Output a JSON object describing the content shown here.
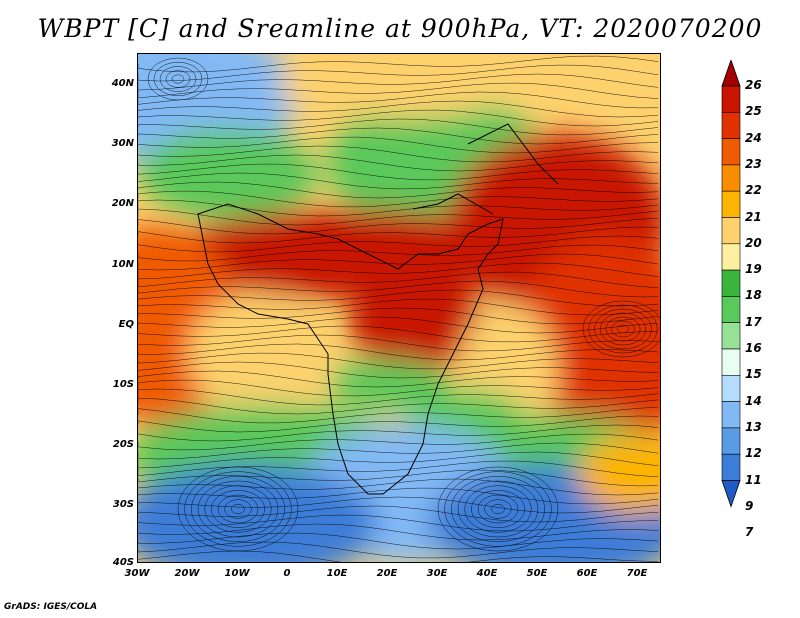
{
  "title": "WBPT [C] and Sreamline at 900hPa, VT: 2020070200",
  "credit": "GrADS: IGES/COLA",
  "axes": {
    "lat_labels": [
      "40N",
      "30N",
      "20N",
      "10N",
      "EQ",
      "10S",
      "20S",
      "30S",
      "40S"
    ],
    "lon_labels": [
      "30W",
      "20W",
      "10W",
      "0",
      "10E",
      "20E",
      "30E",
      "40E",
      "50E",
      "60E",
      "70E"
    ]
  },
  "colorbar": {
    "levels": [
      "26",
      "25",
      "24",
      "23",
      "22",
      "21",
      "20",
      "19",
      "18",
      "17",
      "16",
      "15",
      "14",
      "13",
      "12",
      "11",
      "9",
      "7"
    ],
    "colors": [
      "#a50000",
      "#c81400",
      "#e03200",
      "#f05a00",
      "#fa8c00",
      "#fcb400",
      "#fdd26e",
      "#fef0a0",
      "#39b43c",
      "#5ac85a",
      "#96e196",
      "#e6fff0",
      "#b4dcff",
      "#82b9f5",
      "#5a9be6",
      "#3c7dd7",
      "#1e5ac8"
    ]
  },
  "map": {
    "projection": "latlon",
    "lon_range": [
      -30,
      75
    ],
    "lat_range": [
      -40,
      45
    ],
    "color_regions": [
      {
        "name": "north-atlantic-blue",
        "color": "#82b9f5"
      },
      {
        "name": "sahara-cool",
        "color": "#fdd26e"
      },
      {
        "name": "sahel-hot-band",
        "color": "#c81400"
      },
      {
        "name": "arabian-sea-hot",
        "color": "#c81400"
      },
      {
        "name": "tropical-atlantic-warm",
        "color": "#f05a00"
      },
      {
        "name": "southern-ocean-blue",
        "color": "#3c7dd7"
      },
      {
        "name": "southern-africa-blue",
        "color": "#82b9f5"
      },
      {
        "name": "indian-ocean-warm",
        "color": "#e03200"
      }
    ]
  }
}
